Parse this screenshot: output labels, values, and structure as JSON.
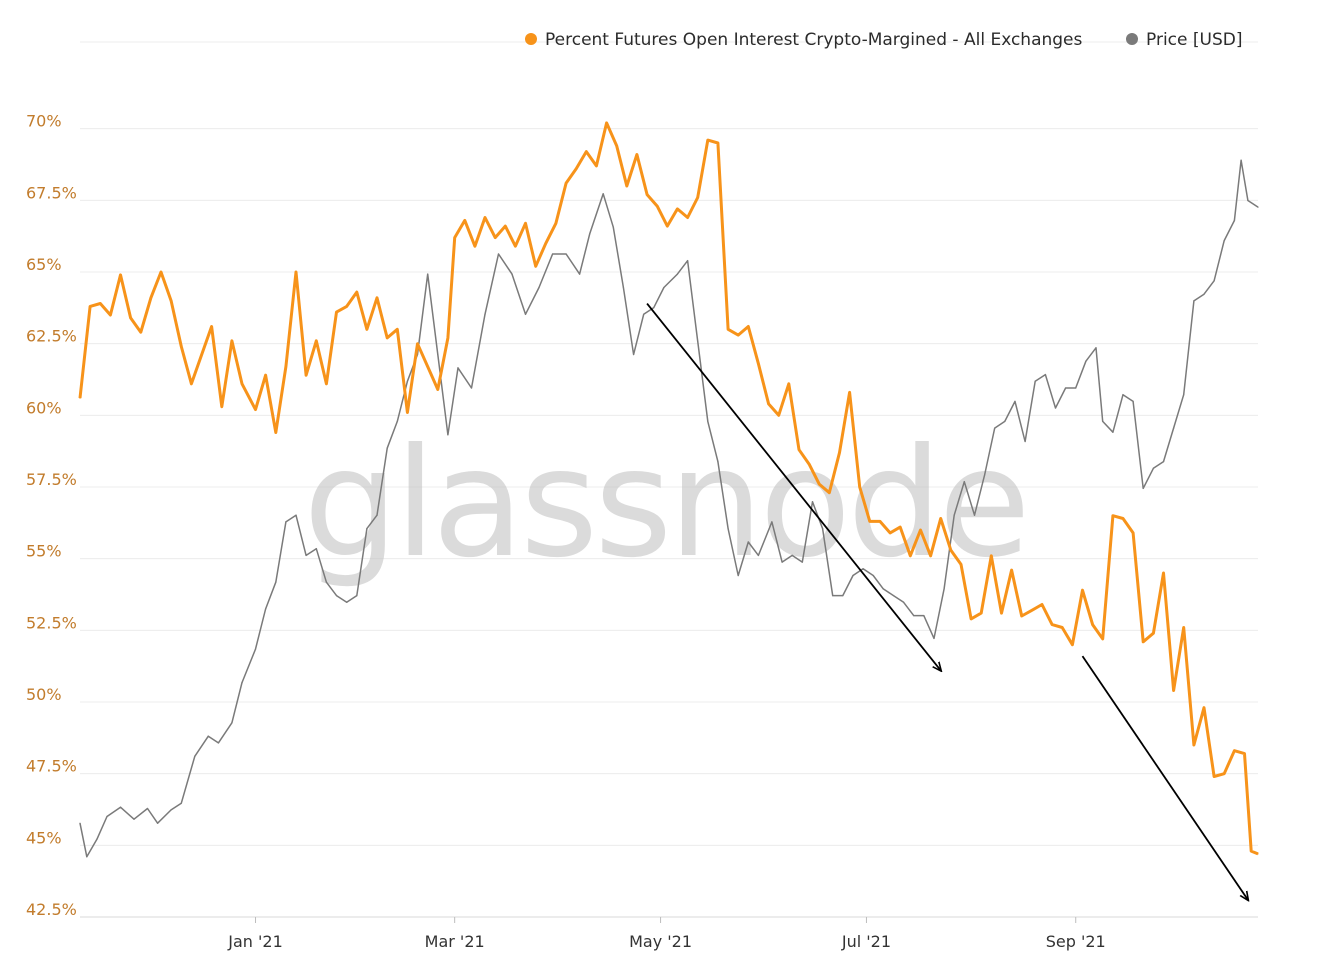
{
  "watermark": "glassnode",
  "colors": {
    "primary": "#f7931a",
    "secondary": "#7a7a7a",
    "ytick": "#c27c2c",
    "grid": "#ececec",
    "arrow": "#000000"
  },
  "legend": [
    {
      "label": "Percent Futures Open Interest Crypto-Margined - All Exchanges",
      "color": "#f7931a"
    },
    {
      "label": "Price [USD]",
      "color": "#7a7a7a"
    }
  ],
  "chart_data": {
    "type": "line",
    "title": "",
    "xlabel": "",
    "ylabel": "",
    "x_range": [
      "2020-11-10",
      "2021-10-25"
    ],
    "y_range_percent": [
      42.5,
      71
    ],
    "y_ticks": [
      "42.5%",
      "45%",
      "47.5%",
      "50%",
      "52.5%",
      "55%",
      "57.5%",
      "60%",
      "62.5%",
      "65%",
      "67.5%",
      "70%"
    ],
    "y_tick_values": [
      42.5,
      45,
      47.5,
      50,
      52.5,
      55,
      57.5,
      60,
      62.5,
      65,
      67.5,
      70
    ],
    "x_ticks": [
      {
        "label": "Jan '21",
        "date": "2021-01-01"
      },
      {
        "label": "Mar '21",
        "date": "2021-03-01"
      },
      {
        "label": "May '21",
        "date": "2021-05-01"
      },
      {
        "label": "Jul '21",
        "date": "2021-07-01"
      },
      {
        "label": "Sep '21",
        "date": "2021-09-01"
      }
    ],
    "grid": "horizontal",
    "legend_position": "top-right",
    "series": [
      {
        "name": "Percent Futures Open Interest Crypto-Margined - All Exchanges",
        "axis": "left",
        "points": [
          [
            "2020-11-10",
            60.6
          ],
          [
            "2020-11-13",
            63.8
          ],
          [
            "2020-11-16",
            63.9
          ],
          [
            "2020-11-19",
            63.5
          ],
          [
            "2020-11-22",
            64.9
          ],
          [
            "2020-11-25",
            63.4
          ],
          [
            "2020-11-28",
            62.9
          ],
          [
            "2020-12-01",
            64.1
          ],
          [
            "2020-12-04",
            65.0
          ],
          [
            "2020-12-07",
            64.0
          ],
          [
            "2020-12-10",
            62.4
          ],
          [
            "2020-12-13",
            61.1
          ],
          [
            "2020-12-16",
            62.1
          ],
          [
            "2020-12-19",
            63.1
          ],
          [
            "2020-12-22",
            60.3
          ],
          [
            "2020-12-25",
            62.6
          ],
          [
            "2020-12-28",
            61.1
          ],
          [
            "2021-01-01",
            60.2
          ],
          [
            "2021-01-04",
            61.4
          ],
          [
            "2021-01-07",
            59.4
          ],
          [
            "2021-01-10",
            61.7
          ],
          [
            "2021-01-13",
            65.0
          ],
          [
            "2021-01-16",
            61.4
          ],
          [
            "2021-01-19",
            62.6
          ],
          [
            "2021-01-22",
            61.1
          ],
          [
            "2021-01-25",
            63.6
          ],
          [
            "2021-01-28",
            63.8
          ],
          [
            "2021-01-31",
            64.3
          ],
          [
            "2021-02-03",
            63.0
          ],
          [
            "2021-02-06",
            64.1
          ],
          [
            "2021-02-09",
            62.7
          ],
          [
            "2021-02-12",
            63.0
          ],
          [
            "2021-02-15",
            60.1
          ],
          [
            "2021-02-18",
            62.5
          ],
          [
            "2021-02-21",
            61.7
          ],
          [
            "2021-02-24",
            60.9
          ],
          [
            "2021-02-27",
            62.7
          ],
          [
            "2021-03-01",
            66.2
          ],
          [
            "2021-03-04",
            66.8
          ],
          [
            "2021-03-07",
            65.9
          ],
          [
            "2021-03-10",
            66.9
          ],
          [
            "2021-03-13",
            66.2
          ],
          [
            "2021-03-16",
            66.6
          ],
          [
            "2021-03-19",
            65.9
          ],
          [
            "2021-03-22",
            66.7
          ],
          [
            "2021-03-25",
            65.2
          ],
          [
            "2021-03-28",
            66.0
          ],
          [
            "2021-03-31",
            66.7
          ],
          [
            "2021-04-03",
            68.1
          ],
          [
            "2021-04-06",
            68.6
          ],
          [
            "2021-04-09",
            69.2
          ],
          [
            "2021-04-12",
            68.7
          ],
          [
            "2021-04-15",
            70.2
          ],
          [
            "2021-04-18",
            69.4
          ],
          [
            "2021-04-21",
            68.0
          ],
          [
            "2021-04-24",
            69.1
          ],
          [
            "2021-04-27",
            67.7
          ],
          [
            "2021-04-30",
            67.3
          ],
          [
            "2021-05-03",
            66.6
          ],
          [
            "2021-05-06",
            67.2
          ],
          [
            "2021-05-09",
            66.9
          ],
          [
            "2021-05-12",
            67.6
          ],
          [
            "2021-05-15",
            69.6
          ],
          [
            "2021-05-18",
            69.5
          ],
          [
            "2021-05-21",
            63.0
          ],
          [
            "2021-05-24",
            62.8
          ],
          [
            "2021-05-27",
            63.1
          ],
          [
            "2021-05-30",
            61.8
          ],
          [
            "2021-06-02",
            60.4
          ],
          [
            "2021-06-05",
            60.0
          ],
          [
            "2021-06-08",
            61.1
          ],
          [
            "2021-06-11",
            58.8
          ],
          [
            "2021-06-14",
            58.3
          ],
          [
            "2021-06-17",
            57.6
          ],
          [
            "2021-06-20",
            57.3
          ],
          [
            "2021-06-23",
            58.7
          ],
          [
            "2021-06-26",
            60.8
          ],
          [
            "2021-06-29",
            57.5
          ],
          [
            "2021-07-02",
            56.3
          ],
          [
            "2021-07-05",
            56.3
          ],
          [
            "2021-07-08",
            55.9
          ],
          [
            "2021-07-11",
            56.1
          ],
          [
            "2021-07-14",
            55.1
          ],
          [
            "2021-07-17",
            56.0
          ],
          [
            "2021-07-20",
            55.1
          ],
          [
            "2021-07-23",
            56.4
          ],
          [
            "2021-07-26",
            55.3
          ],
          [
            "2021-07-29",
            54.8
          ],
          [
            "2021-08-01",
            52.9
          ],
          [
            "2021-08-04",
            53.1
          ],
          [
            "2021-08-07",
            55.1
          ],
          [
            "2021-08-10",
            53.1
          ],
          [
            "2021-08-13",
            54.6
          ],
          [
            "2021-08-16",
            53.0
          ],
          [
            "2021-08-19",
            53.2
          ],
          [
            "2021-08-22",
            53.4
          ],
          [
            "2021-08-25",
            52.7
          ],
          [
            "2021-08-28",
            52.6
          ],
          [
            "2021-08-31",
            52.0
          ],
          [
            "2021-09-03",
            53.9
          ],
          [
            "2021-09-06",
            52.7
          ],
          [
            "2021-09-09",
            52.2
          ],
          [
            "2021-09-12",
            56.5
          ],
          [
            "2021-09-15",
            56.4
          ],
          [
            "2021-09-18",
            55.9
          ],
          [
            "2021-09-21",
            52.1
          ],
          [
            "2021-09-24",
            52.4
          ],
          [
            "2021-09-27",
            54.5
          ],
          [
            "2021-09-30",
            50.4
          ],
          [
            "2021-10-03",
            52.6
          ],
          [
            "2021-10-06",
            48.5
          ],
          [
            "2021-10-09",
            49.8
          ],
          [
            "2021-10-12",
            47.4
          ],
          [
            "2021-10-15",
            47.5
          ],
          [
            "2021-10-18",
            48.3
          ],
          [
            "2021-10-21",
            48.2
          ],
          [
            "2021-10-23",
            44.8
          ],
          [
            "2021-10-25",
            44.7
          ]
        ]
      },
      {
        "name": "Price [USD]",
        "axis": "right",
        "note_scale": "no right-axis ticks shown",
        "points": [
          [
            "2020-11-10",
            16000
          ],
          [
            "2020-11-12",
            13500
          ],
          [
            "2020-11-15",
            14800
          ],
          [
            "2020-11-18",
            16500
          ],
          [
            "2020-11-22",
            17200
          ],
          [
            "2020-11-26",
            16300
          ],
          [
            "2020-11-30",
            17100
          ],
          [
            "2020-12-03",
            16000
          ],
          [
            "2020-12-07",
            17000
          ],
          [
            "2020-12-10",
            17500
          ],
          [
            "2020-12-14",
            21000
          ],
          [
            "2020-12-18",
            22500
          ],
          [
            "2020-12-21",
            22000
          ],
          [
            "2020-12-25",
            23500
          ],
          [
            "2020-12-28",
            26500
          ],
          [
            "2021-01-01",
            29000
          ],
          [
            "2021-01-04",
            32000
          ],
          [
            "2021-01-07",
            34000
          ],
          [
            "2021-01-10",
            38500
          ],
          [
            "2021-01-13",
            39000
          ],
          [
            "2021-01-16",
            36000
          ],
          [
            "2021-01-19",
            36500
          ],
          [
            "2021-01-22",
            34000
          ],
          [
            "2021-01-25",
            33000
          ],
          [
            "2021-01-28",
            32500
          ],
          [
            "2021-01-31",
            33000
          ],
          [
            "2021-02-03",
            38000
          ],
          [
            "2021-02-06",
            39000
          ],
          [
            "2021-02-09",
            44000
          ],
          [
            "2021-02-12",
            46000
          ],
          [
            "2021-02-15",
            49000
          ],
          [
            "2021-02-18",
            51000
          ],
          [
            "2021-02-21",
            57000
          ],
          [
            "2021-02-24",
            51000
          ],
          [
            "2021-02-27",
            45000
          ],
          [
            "2021-03-02",
            50000
          ],
          [
            "2021-03-06",
            48500
          ],
          [
            "2021-03-10",
            54000
          ],
          [
            "2021-03-14",
            58500
          ],
          [
            "2021-03-18",
            57000
          ],
          [
            "2021-03-22",
            54000
          ],
          [
            "2021-03-26",
            56000
          ],
          [
            "2021-03-30",
            58500
          ],
          [
            "2021-04-03",
            58500
          ],
          [
            "2021-04-07",
            57000
          ],
          [
            "2021-04-10",
            60000
          ],
          [
            "2021-04-14",
            63000
          ],
          [
            "2021-04-17",
            60500
          ],
          [
            "2021-04-20",
            56000
          ],
          [
            "2021-04-23",
            51000
          ],
          [
            "2021-04-26",
            54000
          ],
          [
            "2021-04-29",
            54500
          ],
          [
            "2021-05-02",
            56000
          ],
          [
            "2021-05-06",
            57000
          ],
          [
            "2021-05-09",
            58000
          ],
          [
            "2021-05-12",
            52000
          ],
          [
            "2021-05-15",
            46000
          ],
          [
            "2021-05-18",
            43000
          ],
          [
            "2021-05-21",
            38000
          ],
          [
            "2021-05-24",
            34500
          ],
          [
            "2021-05-27",
            37000
          ],
          [
            "2021-05-30",
            36000
          ],
          [
            "2021-06-03",
            38500
          ],
          [
            "2021-06-06",
            35500
          ],
          [
            "2021-06-09",
            36000
          ],
          [
            "2021-06-12",
            35500
          ],
          [
            "2021-06-15",
            40000
          ],
          [
            "2021-06-18",
            38000
          ],
          [
            "2021-06-21",
            33000
          ],
          [
            "2021-06-24",
            33000
          ],
          [
            "2021-06-27",
            34500
          ],
          [
            "2021-06-30",
            35000
          ],
          [
            "2021-07-03",
            34500
          ],
          [
            "2021-07-06",
            33500
          ],
          [
            "2021-07-09",
            33000
          ],
          [
            "2021-07-12",
            32500
          ],
          [
            "2021-07-15",
            31500
          ],
          [
            "2021-07-18",
            31500
          ],
          [
            "2021-07-21",
            29800
          ],
          [
            "2021-07-24",
            33500
          ],
          [
            "2021-07-27",
            39000
          ],
          [
            "2021-07-30",
            41500
          ],
          [
            "2021-08-02",
            39000
          ],
          [
            "2021-08-05",
            42000
          ],
          [
            "2021-08-08",
            45500
          ],
          [
            "2021-08-11",
            46000
          ],
          [
            "2021-08-14",
            47500
          ],
          [
            "2021-08-17",
            44500
          ],
          [
            "2021-08-20",
            49000
          ],
          [
            "2021-08-23",
            49500
          ],
          [
            "2021-08-26",
            47000
          ],
          [
            "2021-08-29",
            48500
          ],
          [
            "2021-09-01",
            48500
          ],
          [
            "2021-09-04",
            50500
          ],
          [
            "2021-09-07",
            51500
          ],
          [
            "2021-09-09",
            46000
          ],
          [
            "2021-09-12",
            45200
          ],
          [
            "2021-09-15",
            48000
          ],
          [
            "2021-09-18",
            47500
          ],
          [
            "2021-09-21",
            41000
          ],
          [
            "2021-09-24",
            42500
          ],
          [
            "2021-09-27",
            43000
          ],
          [
            "2021-09-30",
            45500
          ],
          [
            "2021-10-03",
            48000
          ],
          [
            "2021-10-06",
            55000
          ],
          [
            "2021-10-09",
            55500
          ],
          [
            "2021-10-12",
            56500
          ],
          [
            "2021-10-15",
            59500
          ],
          [
            "2021-10-18",
            61000
          ],
          [
            "2021-10-20",
            65500
          ],
          [
            "2021-10-22",
            62500
          ],
          [
            "2021-10-25",
            62000
          ]
        ]
      }
    ],
    "annotations": [
      {
        "type": "arrow",
        "from": [
          "2021-04-27",
          63.9
        ],
        "to": [
          "2021-07-23",
          51.1
        ]
      },
      {
        "type": "arrow",
        "from": [
          "2021-09-03",
          51.6
        ],
        "to": [
          "2021-10-22",
          43.1
        ]
      }
    ]
  }
}
